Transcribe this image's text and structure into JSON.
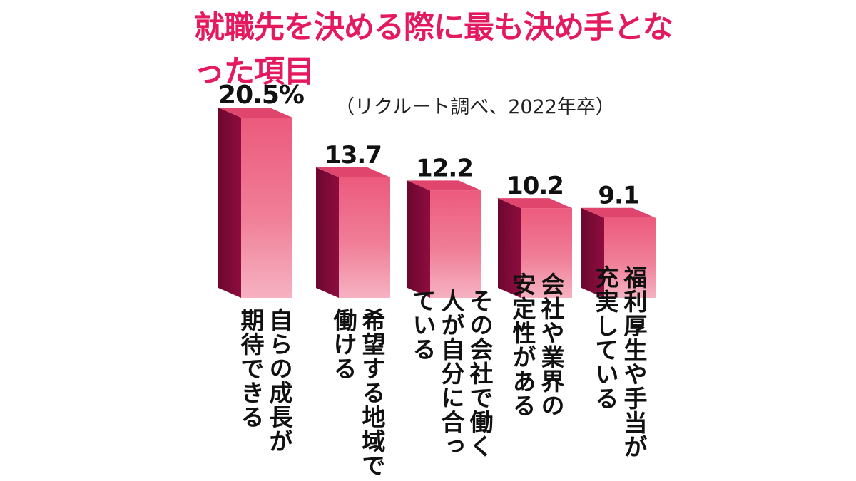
{
  "title": "就職先を決める際に最も決め手となった項目",
  "subtitle": "（リクルート調べ、2022年卒）",
  "colors": {
    "title": "#e5195f",
    "bar_front": "#ec5a7c",
    "bar_side": "#8e0d3e",
    "bar_top": "#e0456d"
  },
  "chart_data": {
    "type": "bar",
    "title": "就職先を決める際に最も決め手となった項目",
    "subtitle": "（リクルート調べ、2022年卒）",
    "categories": [
      "自らの成長が期待できる",
      "希望する地域で働ける",
      "その会社で働く人が自分に合っている",
      "会社や業界の安定性がある",
      "福利厚生や手当が充実している"
    ],
    "category_labels": [
      "自らの成長が\n期待できる",
      "希望する地域で\n働ける",
      "その会社で働く\n人が自分に合っ\nている",
      "会社や業界の\n安定性がある",
      "福利厚生や手当が\n充実している"
    ],
    "values": [
      20.5,
      13.7,
      12.2,
      10.2,
      9.1
    ],
    "value_labels": [
      "20.5%",
      "13.7",
      "12.2",
      "10.2",
      "9.1"
    ],
    "unit": "%",
    "ylim": [
      0,
      20.5
    ],
    "grid": false,
    "legend": "none"
  }
}
